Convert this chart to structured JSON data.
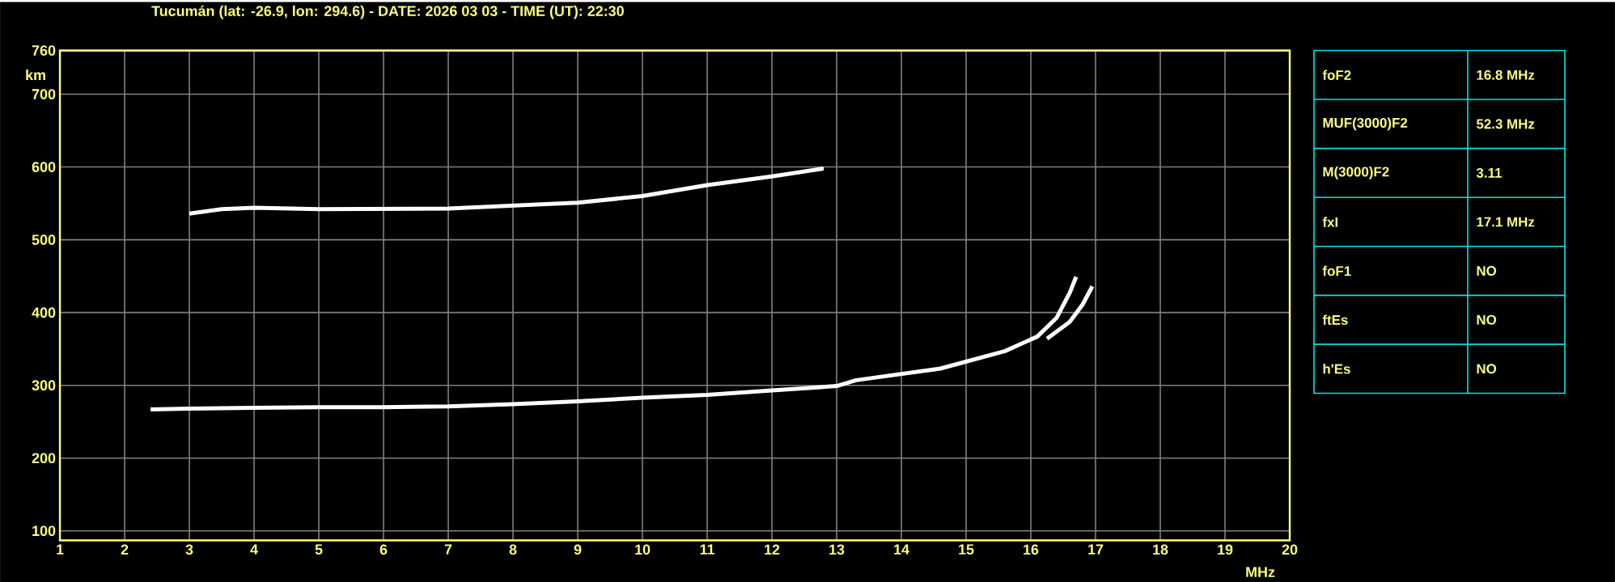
{
  "chart_data": [
    {
      "type": "line",
      "title": "Tucumán (lat: -26.9, lon: 294.6) - DATE: 2026 03 03 - TIME (UT): 22:30",
      "xlabel": "MHz",
      "ylabel": "km",
      "xlim": [
        1,
        20
      ],
      "ylim": [
        87,
        760
      ],
      "xticks": [
        1,
        2,
        3,
        4,
        5,
        6,
        7,
        8,
        9,
        10,
        11,
        12,
        13,
        14,
        15,
        16,
        17,
        18,
        19,
        20
      ],
      "yticks": [
        100,
        200,
        300,
        400,
        500,
        600,
        700,
        760
      ],
      "grid": true,
      "series": [
        {
          "color": "#ffffff",
          "x": [
            2.4,
            3,
            4,
            5,
            6,
            7,
            8,
            9,
            10,
            11,
            12,
            13,
            13.3,
            14.6,
            15.6,
            16.1,
            16.4,
            16.6,
            16.7
          ],
          "values": [
            267,
            268,
            269,
            270,
            270,
            271,
            274,
            278,
            283,
            287,
            293,
            299,
            307,
            323,
            347,
            367,
            393,
            427,
            449
          ]
        },
        {
          "color": "#ffffff",
          "x": [
            16.25,
            16.6,
            16.8,
            16.95
          ],
          "values": [
            364,
            387,
            411,
            436
          ]
        },
        {
          "color": "#ffffff",
          "x": [
            3,
            3.5,
            4,
            5,
            7,
            8,
            9,
            10,
            11,
            12,
            12.8
          ],
          "values": [
            536,
            542,
            544,
            542,
            543,
            547,
            551,
            560,
            575,
            587,
            598
          ]
        }
      ]
    },
    {
      "type": "other",
      "annotations": [
        "foF2",
        "16.8 MHz",
        "MUF(3000)F2",
        "52.3 MHz",
        "M(3000)F2",
        "3.11",
        "fxI",
        "17.1 MHz",
        "foF1",
        "NO",
        "ftEs",
        "NO",
        "h'Es",
        "NO"
      ]
    }
  ]
}
